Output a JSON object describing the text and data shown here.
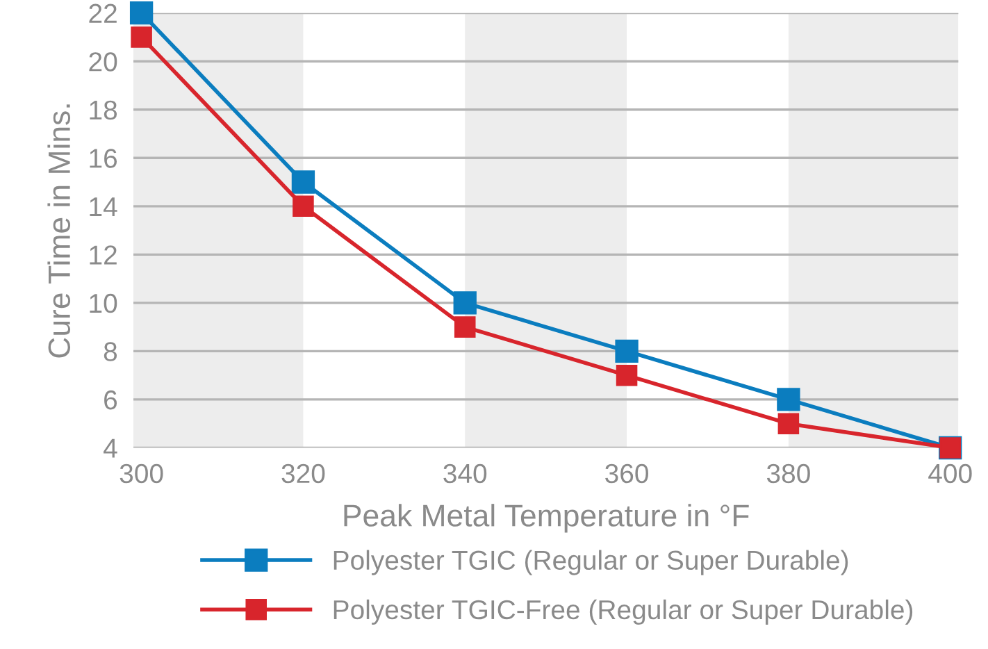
{
  "chart_data": {
    "type": "line",
    "xlabel": "Peak Metal Temperature in °F",
    "ylabel": "Cure Time in Mins.",
    "x": [
      300,
      320,
      340,
      360,
      380,
      400
    ],
    "series": [
      {
        "name": "Polyester TGIC (Regular or Super Durable)",
        "color": "#0b7dbf",
        "values": [
          22,
          15,
          10,
          8,
          6,
          4
        ]
      },
      {
        "name": "Polyester TGIC-Free (Regular or Super Durable)",
        "color": "#d8252c",
        "values": [
          21,
          14,
          9,
          7,
          5,
          4
        ]
      }
    ],
    "xlim": [
      299,
      401
    ],
    "xticks": [
      300,
      320,
      340,
      360,
      380,
      400
    ],
    "ylim": [
      4,
      22
    ],
    "yticks": [
      4,
      6,
      8,
      10,
      12,
      14,
      16,
      18,
      20,
      22
    ],
    "bands": [
      {
        "axis": "x",
        "from": 299,
        "to": 320,
        "color": "#ededed"
      },
      {
        "axis": "x",
        "from": 340,
        "to": 360,
        "color": "#ededed"
      },
      {
        "axis": "x",
        "from": 380,
        "to": 401,
        "color": "#ededed"
      }
    ],
    "grid": "y",
    "legend": "bottom",
    "marker": "square",
    "line_style": "solid"
  }
}
